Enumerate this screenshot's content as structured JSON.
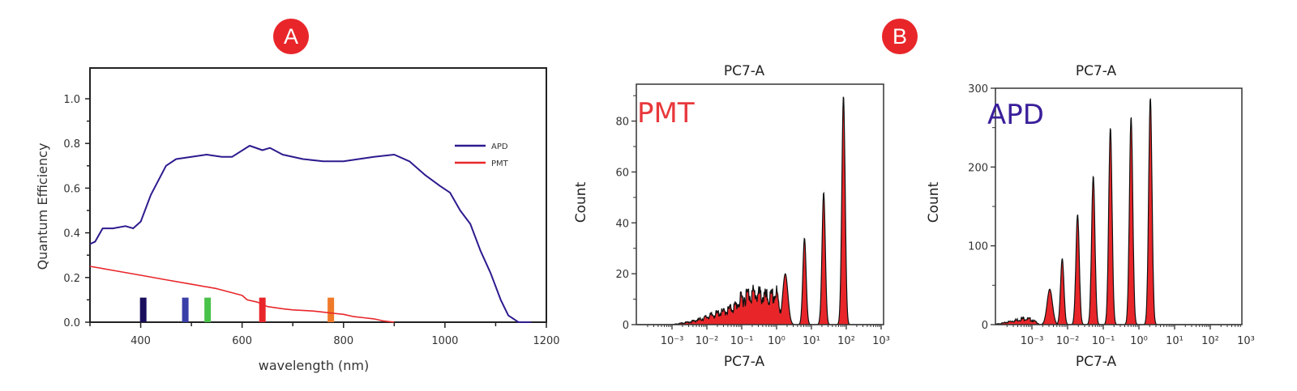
{
  "panels": {
    "a_label": "A",
    "b_label": "B",
    "badge_color": "#e8262a"
  },
  "chart_data": [
    {
      "id": "quantum-efficiency",
      "type": "line",
      "title": "",
      "xlabel": "wavelength (nm)",
      "ylabel": "Quantum Efficiency",
      "xlim": [
        300,
        1200
      ],
      "ylim": [
        0,
        1.1
      ],
      "xticks": [
        400,
        600,
        800,
        1000,
        1200
      ],
      "xtick_labels": [
        "400",
        "600",
        "800",
        "1000",
        "1200"
      ],
      "yticks": [
        0.0,
        0.2,
        0.4,
        0.6,
        0.8,
        1.0
      ],
      "ytick_labels": [
        "0.0",
        "0.2",
        "0.4",
        "0.6",
        "0.8",
        "1.0"
      ],
      "grid": false,
      "legend_position": "top-right",
      "series": [
        {
          "name": "APD",
          "color": "#2e1a8e",
          "x": [
            300,
            310,
            325,
            345,
            370,
            385,
            400,
            420,
            450,
            470,
            500,
            530,
            560,
            580,
            615,
            640,
            655,
            680,
            720,
            760,
            800,
            830,
            860,
            900,
            930,
            960,
            990,
            1010,
            1030,
            1050,
            1070,
            1090,
            1110,
            1125,
            1145,
            1170
          ],
          "y": [
            0.35,
            0.36,
            0.42,
            0.42,
            0.43,
            0.42,
            0.45,
            0.57,
            0.7,
            0.73,
            0.74,
            0.75,
            0.74,
            0.74,
            0.79,
            0.77,
            0.78,
            0.75,
            0.73,
            0.72,
            0.72,
            0.73,
            0.74,
            0.75,
            0.72,
            0.66,
            0.61,
            0.58,
            0.5,
            0.44,
            0.32,
            0.22,
            0.1,
            0.03,
            0.0,
            0.0
          ]
        },
        {
          "name": "PMT",
          "color": "#e8262a",
          "x": [
            300,
            350,
            400,
            450,
            500,
            550,
            600,
            610,
            630,
            650,
            680,
            700,
            740,
            760,
            780,
            800,
            820,
            840,
            860,
            880,
            900
          ],
          "y": [
            0.25,
            0.23,
            0.21,
            0.19,
            0.17,
            0.15,
            0.12,
            0.1,
            0.09,
            0.07,
            0.06,
            0.055,
            0.05,
            0.045,
            0.04,
            0.035,
            0.025,
            0.02,
            0.015,
            0.005,
            0.0
          ]
        }
      ],
      "laser_markers": [
        {
          "wavelength": 405,
          "color": "#1a0f5c"
        },
        {
          "wavelength": 488,
          "color": "#3a3fa8"
        },
        {
          "wavelength": 532,
          "color": "#49c24a"
        },
        {
          "wavelength": 640,
          "color": "#e8262a"
        },
        {
          "wavelength": 775,
          "color": "#f07a2a"
        }
      ],
      "laser_marker_height": 0.11
    },
    {
      "id": "pmt-histogram",
      "type": "area",
      "title": "PC7-A",
      "xlabel": "PC7-A",
      "ylabel": "Count",
      "annotation": "PMT",
      "annotation_color": "#e8383c",
      "xscale": "log",
      "xlim_log10": [
        -4,
        3
      ],
      "xtick_labels": [
        "10⁻³",
        "10⁻²",
        "10⁻¹",
        "10⁰",
        "10¹",
        "10²",
        "10³"
      ],
      "xticks_log10": [
        -3,
        -2,
        -1,
        0,
        1,
        2,
        3
      ],
      "ylim": [
        0,
        92
      ],
      "yticks": [
        0,
        20,
        40,
        60,
        80
      ],
      "ytick_labels": [
        "0",
        "20",
        "40",
        "60",
        "80"
      ],
      "fill_color": "#e8262a",
      "line_color": "#111111",
      "background_distribution": {
        "log10_x": [
          -3.0,
          -2.5,
          -2.2,
          -2.0,
          -1.8,
          -1.5,
          -1.2,
          -1.0,
          -0.8,
          -0.6,
          -0.4,
          -0.2,
          0.0,
          0.1,
          0.2
        ],
        "counts": [
          0,
          1,
          2,
          3,
          4,
          5,
          7,
          10,
          12,
          12,
          11,
          10,
          12,
          6,
          4
        ]
      },
      "peaks": [
        {
          "log10_x": 0.25,
          "count": 20
        },
        {
          "log10_x": 0.8,
          "count": 34
        },
        {
          "log10_x": 1.35,
          "count": 52
        },
        {
          "log10_x": 1.92,
          "count": 90
        }
      ]
    },
    {
      "id": "apd-histogram",
      "type": "area",
      "title": "PC7-A",
      "xlabel": "PC7-A",
      "ylabel": "Count",
      "annotation": "APD",
      "annotation_color": "#3a1f9a",
      "xscale": "log",
      "xlim_log10": [
        -4.2,
        3
      ],
      "xtick_labels": [
        "10⁻³",
        "10⁻²",
        "10⁻¹",
        "10⁰",
        "10¹",
        "10²",
        "10³"
      ],
      "xticks_log10": [
        -3,
        -2,
        -1,
        0,
        1,
        2,
        3
      ],
      "ylim": [
        0,
        300
      ],
      "yticks": [
        0,
        100,
        200,
        300
      ],
      "ytick_labels": [
        "0",
        "100",
        "200",
        "300"
      ],
      "fill_color": "#e8262a",
      "line_color": "#111111",
      "background_distribution": {
        "log10_x": [
          -4.1,
          -3.8,
          -3.5,
          -3.2,
          -3.0,
          -2.8
        ],
        "counts": [
          0,
          2,
          5,
          8,
          6,
          1
        ]
      },
      "peaks": [
        {
          "log10_x": -2.5,
          "count": 45
        },
        {
          "log10_x": -2.15,
          "count": 84
        },
        {
          "log10_x": -1.72,
          "count": 140
        },
        {
          "log10_x": -1.28,
          "count": 189
        },
        {
          "log10_x": -0.8,
          "count": 250
        },
        {
          "log10_x": -0.22,
          "count": 264
        },
        {
          "log10_x": 0.32,
          "count": 288
        }
      ]
    }
  ]
}
